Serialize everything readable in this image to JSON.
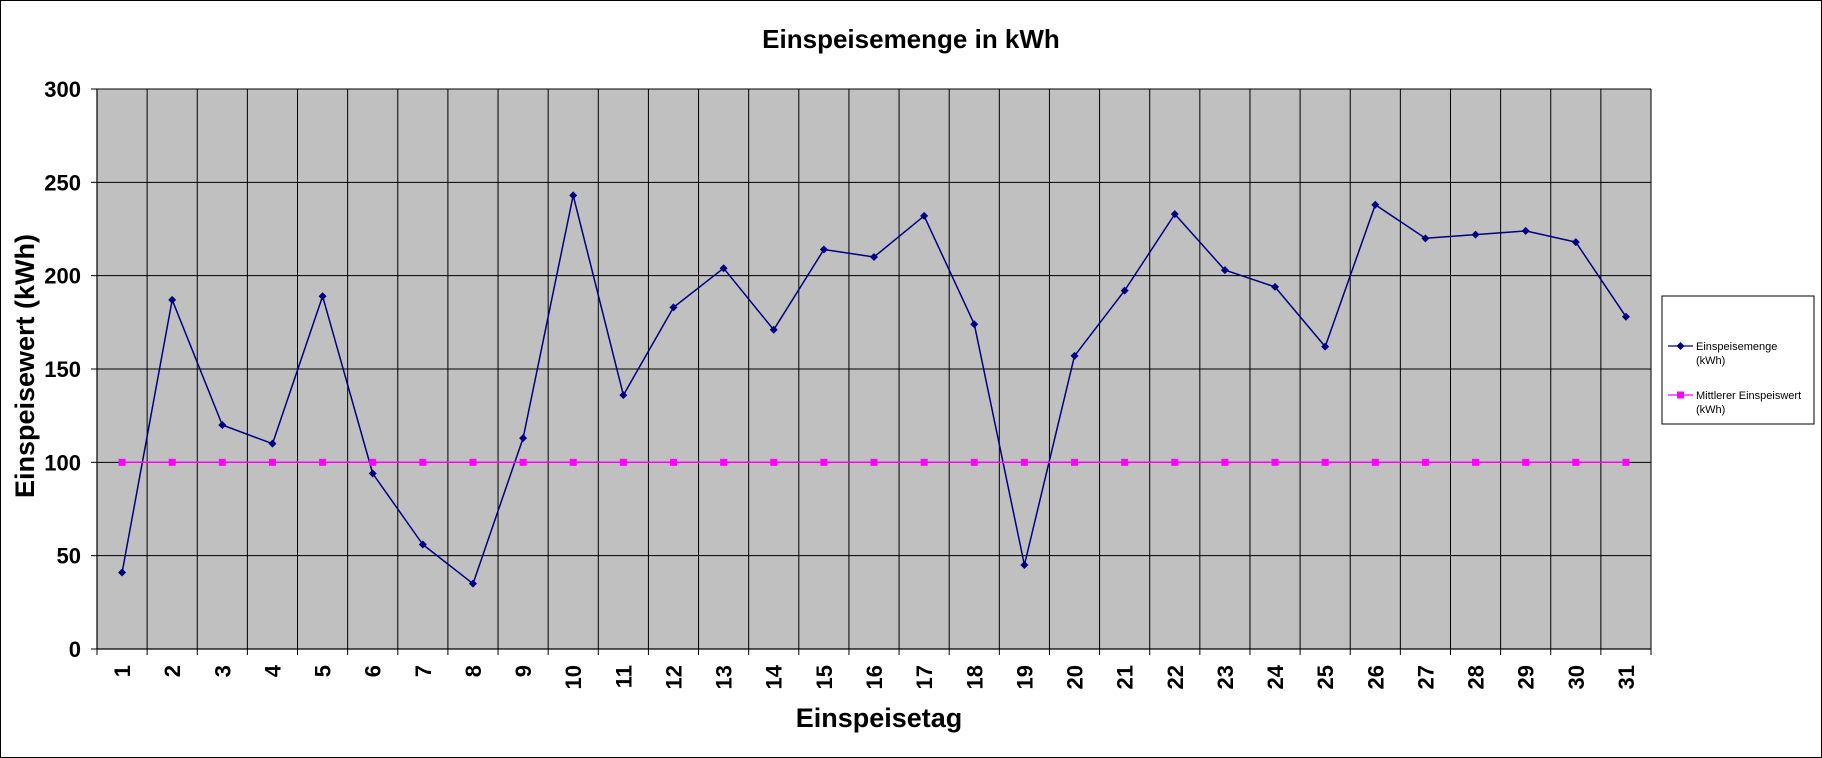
{
  "chart_data": {
    "type": "line",
    "title": "Einspeisemenge in kWh",
    "xlabel": "Einspeisetag",
    "ylabel": "Einspeisewert  (kWh)",
    "ylim": [
      0,
      300
    ],
    "yticks": [
      0,
      50,
      100,
      150,
      200,
      250,
      300
    ],
    "categories": [
      "1",
      "2",
      "3",
      "4",
      "5",
      "6",
      "7",
      "8",
      "9",
      "10",
      "11",
      "12",
      "13",
      "14",
      "15",
      "16",
      "17",
      "18",
      "19",
      "20",
      "21",
      "22",
      "23",
      "24",
      "25",
      "26",
      "27",
      "28",
      "29",
      "30",
      "31"
    ],
    "grid": true,
    "plot_background": "#c0c0c0",
    "legend_position": "right",
    "series": [
      {
        "name": "Einspeisemenge (kWh)",
        "legend_lines": [
          "Einspeisemenge",
          "(kWh)"
        ],
        "color": "#000080",
        "marker": "diamond",
        "values": [
          41,
          187,
          120,
          110,
          189,
          94,
          56,
          35,
          113,
          243,
          136,
          183,
          204,
          171,
          214,
          210,
          232,
          174,
          45,
          157,
          192,
          233,
          203,
          194,
          162,
          238,
          220,
          222,
          224,
          218,
          178
        ]
      },
      {
        "name": "Mittlerer Einspeiswert (kWh)",
        "legend_lines": [
          "Mittlerer Einspeiswert",
          "(kWh)"
        ],
        "color": "#ff00ff",
        "marker": "square",
        "values": [
          100,
          100,
          100,
          100,
          100,
          100,
          100,
          100,
          100,
          100,
          100,
          100,
          100,
          100,
          100,
          100,
          100,
          100,
          100,
          100,
          100,
          100,
          100,
          100,
          100,
          100,
          100,
          100,
          100,
          100,
          100
        ]
      }
    ]
  }
}
